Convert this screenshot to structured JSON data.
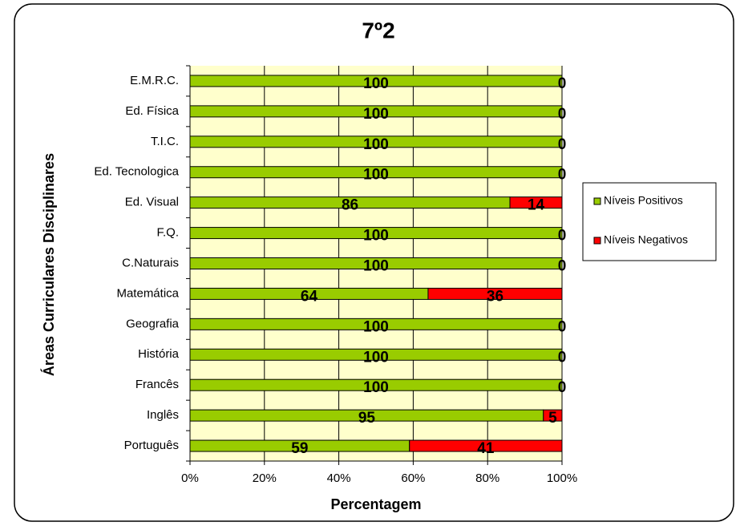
{
  "chart_data": {
    "type": "stacked_barh",
    "title": "7º2",
    "x_label": "Percentagem",
    "y_label": "Áreas Curriculares  Disciplinares",
    "categories": [
      "E.M.R.C.",
      "Ed. Física",
      "T.I.C.",
      "Ed. Tecnologica",
      "Ed. Visual",
      "F.Q.",
      "C.Naturais",
      "Matemática",
      "Geografia",
      "História",
      "Francês",
      "Inglês",
      "Português"
    ],
    "series": [
      {
        "name": "Níveis Positivos",
        "color": "#99cc00",
        "values": [
          100,
          100,
          100,
          100,
          86,
          100,
          100,
          64,
          100,
          100,
          100,
          95,
          59
        ]
      },
      {
        "name": "Níveis Negativos",
        "color": "#ff0000",
        "values": [
          0,
          0,
          0,
          0,
          14,
          0,
          0,
          36,
          0,
          0,
          0,
          5,
          41
        ]
      }
    ],
    "xlim": [
      0,
      100
    ],
    "xticks": [
      {
        "value": 0,
        "label": "0%"
      },
      {
        "value": 20,
        "label": "20%"
      },
      {
        "value": 40,
        "label": "40%"
      },
      {
        "value": 60,
        "label": "60%"
      },
      {
        "value": 80,
        "label": "80%"
      },
      {
        "value": 100,
        "label": "100%"
      }
    ],
    "grid": true,
    "legend": "right"
  }
}
